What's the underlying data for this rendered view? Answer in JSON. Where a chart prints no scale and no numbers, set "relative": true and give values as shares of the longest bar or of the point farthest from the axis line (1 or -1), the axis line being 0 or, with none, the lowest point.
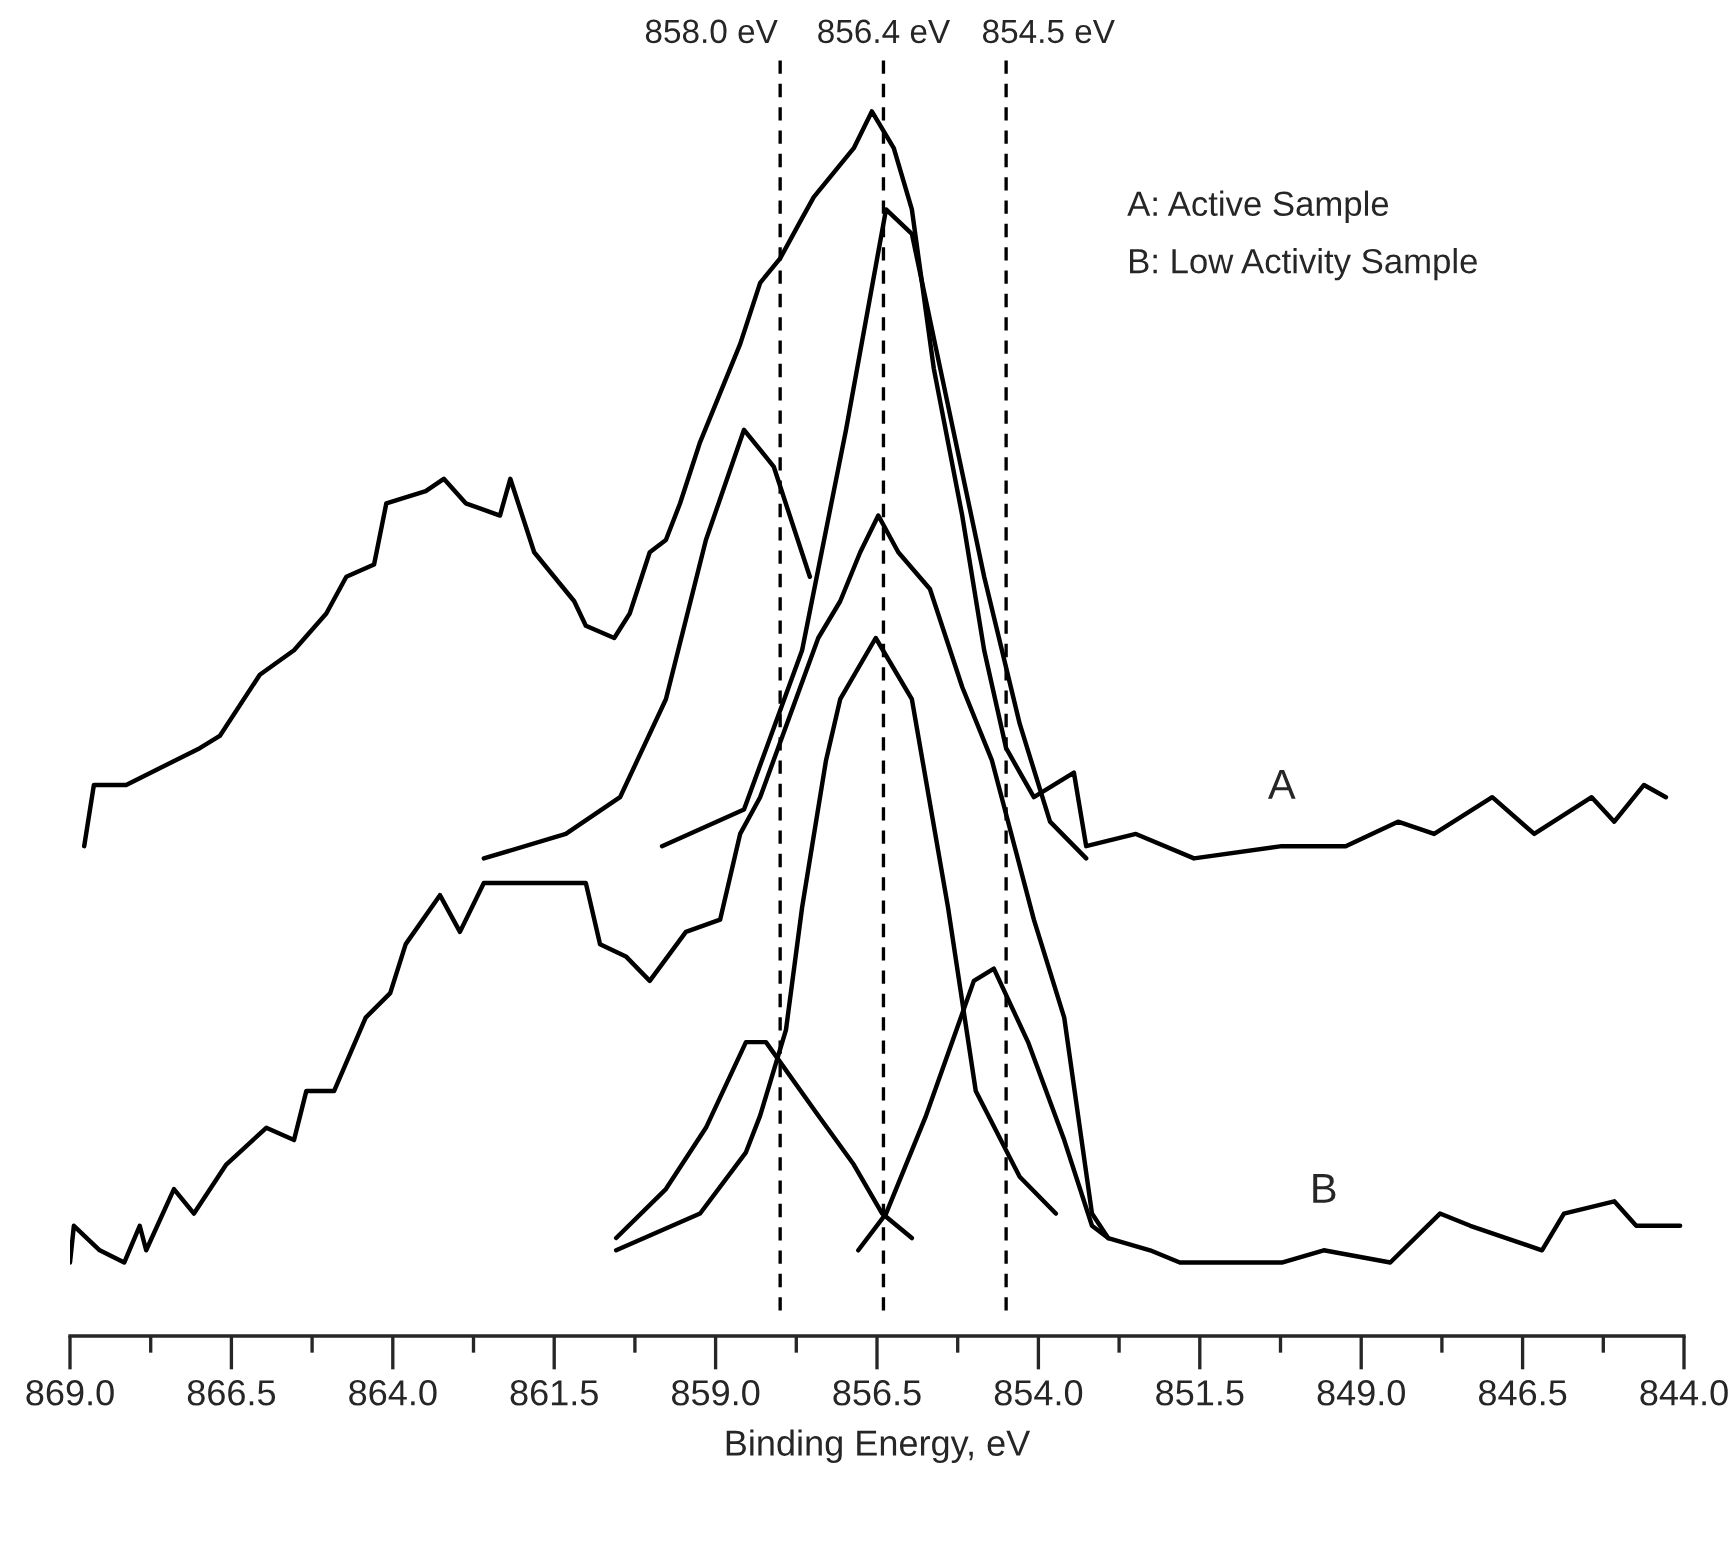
{
  "chart_data": {
    "type": "line",
    "relative": true,
    "xlabel": "Binding Energy, eV",
    "xlim": [
      869.0,
      844.0
    ],
    "xticks": [
      {
        "value": 869.0,
        "label": "869.0"
      },
      {
        "value": 867.75,
        "label": null
      },
      {
        "value": 866.5,
        "label": "866.5"
      },
      {
        "value": 865.25,
        "label": null
      },
      {
        "value": 864.0,
        "label": "864.0"
      },
      {
        "value": 862.75,
        "label": null
      },
      {
        "value": 861.5,
        "label": "861.5"
      },
      {
        "value": 860.25,
        "label": null
      },
      {
        "value": 859.0,
        "label": "859.0"
      },
      {
        "value": 857.75,
        "label": null
      },
      {
        "value": 856.5,
        "label": "856.5"
      },
      {
        "value": 855.25,
        "label": null
      },
      {
        "value": 854.0,
        "label": "854.0"
      },
      {
        "value": 852.75,
        "label": null
      },
      {
        "value": 851.5,
        "label": "851.5"
      },
      {
        "value": 850.25,
        "label": null
      },
      {
        "value": 849.0,
        "label": "849.0"
      },
      {
        "value": 847.75,
        "label": null
      },
      {
        "value": 846.5,
        "label": "846.5"
      },
      {
        "value": 845.25,
        "label": null
      },
      {
        "value": 844.0,
        "label": "844.0"
      }
    ],
    "tick_labels": "x",
    "grid": false,
    "legend": false,
    "line_style": "solid",
    "marker": "none",
    "series": [
      {
        "name": "A",
        "color": "#000000",
        "x": [
          868.78,
          868.63,
          868.13,
          866.99,
          866.68,
          866.06,
          865.53,
          865.03,
          864.72,
          864.29,
          864.1,
          863.49,
          863.21,
          862.87,
          862.34,
          862.18,
          861.81,
          861.5,
          861.19,
          861.01,
          860.57,
          860.33,
          860.02,
          859.77,
          859.55,
          859.24,
          858.93,
          858.62,
          858.31,
          858.0,
          857.69,
          857.48,
          857.17,
          856.86,
          856.58,
          856.24,
          855.96,
          855.62,
          855.18,
          854.84,
          854.5,
          854.07,
          853.45,
          853.26,
          852.49,
          851.59,
          850.23,
          849.24,
          848.43,
          847.87,
          846.97,
          846.32,
          845.43,
          845.08,
          844.62,
          844.28
        ],
        "values": [
          0.4,
          0.45,
          0.45,
          0.48,
          0.49,
          0.54,
          0.56,
          0.59,
          0.62,
          0.63,
          0.68,
          0.69,
          0.7,
          0.68,
          0.67,
          0.7,
          0.64,
          0.62,
          0.6,
          0.58,
          0.57,
          0.59,
          0.64,
          0.65,
          0.68,
          0.73,
          0.77,
          0.81,
          0.86,
          0.88,
          0.91,
          0.93,
          0.95,
          0.97,
          1.0,
          0.97,
          0.92,
          0.79,
          0.67,
          0.56,
          0.48,
          0.44,
          0.46,
          0.4,
          0.41,
          0.39,
          0.4,
          0.4,
          0.42,
          0.41,
          0.44,
          0.41,
          0.44,
          0.42,
          0.45,
          0.44
        ]
      },
      {
        "color": "#000000",
        "x": [
          862.59,
          861.32,
          860.48,
          859.77,
          859.15,
          858.56,
          858.1,
          857.54
        ],
        "values": [
          0.39,
          0.41,
          0.44,
          0.52,
          0.65,
          0.74,
          0.71,
          0.62
        ]
      },
      {
        "color": "#000000",
        "x": [
          859.83,
          858.56,
          857.66,
          856.98,
          856.36,
          855.96,
          855.52,
          854.84,
          854.29,
          853.82,
          853.26
        ],
        "values": [
          0.4,
          0.43,
          0.56,
          0.74,
          0.92,
          0.9,
          0.79,
          0.62,
          0.5,
          0.42,
          0.39
        ]
      },
      {
        "name": "B",
        "color": "#000000",
        "x": [
          869.0,
          868.94,
          868.54,
          868.16,
          867.92,
          867.82,
          867.39,
          867.08,
          866.58,
          865.96,
          865.53,
          865.34,
          864.91,
          864.42,
          864.04,
          863.8,
          863.27,
          862.96,
          862.59,
          861.81,
          861.32,
          861.01,
          860.79,
          860.39,
          860.02,
          859.46,
          858.93,
          858.62,
          858.31,
          857.41,
          857.07,
          856.76,
          856.48,
          856.17,
          855.68,
          855.18,
          854.72,
          854.07,
          853.6,
          853.17,
          852.92,
          852.27,
          851.81,
          850.23,
          849.58,
          848.55,
          847.78,
          847.31,
          846.2,
          845.86,
          845.08,
          844.74,
          844.06
        ],
        "values": [
          0.06,
          0.09,
          0.07,
          0.06,
          0.09,
          0.07,
          0.12,
          0.1,
          0.14,
          0.17,
          0.16,
          0.2,
          0.2,
          0.26,
          0.28,
          0.32,
          0.36,
          0.33,
          0.37,
          0.37,
          0.37,
          0.37,
          0.32,
          0.31,
          0.29,
          0.33,
          0.34,
          0.41,
          0.44,
          0.57,
          0.6,
          0.64,
          0.67,
          0.64,
          0.61,
          0.53,
          0.47,
          0.34,
          0.26,
          0.1,
          0.08,
          0.07,
          0.06,
          0.06,
          0.07,
          0.06,
          0.1,
          0.09,
          0.07,
          0.1,
          0.11,
          0.09,
          0.09
        ]
      },
      {
        "color": "#000000",
        "x": [
          860.54,
          859.77,
          859.15,
          858.53,
          858.22,
          857.41,
          856.86,
          856.42,
          855.96
        ],
        "values": [
          0.08,
          0.12,
          0.17,
          0.24,
          0.24,
          0.18,
          0.14,
          0.1,
          0.08
        ]
      },
      {
        "color": "#000000",
        "x": [
          860.54,
          859.24,
          858.53,
          858.31,
          857.91,
          857.66,
          857.29,
          857.07,
          856.52,
          855.96,
          855.4,
          854.97,
          854.29,
          853.73
        ],
        "values": [
          0.07,
          0.1,
          0.15,
          0.18,
          0.25,
          0.35,
          0.47,
          0.52,
          0.57,
          0.52,
          0.35,
          0.2,
          0.13,
          0.1
        ]
      },
      {
        "color": "#000000",
        "x": [
          856.79,
          856.36,
          855.74,
          855.0,
          854.69,
          854.16,
          853.6,
          853.17,
          852.92
        ],
        "values": [
          0.07,
          0.1,
          0.18,
          0.29,
          0.3,
          0.24,
          0.16,
          0.09,
          0.08
        ]
      }
    ],
    "ref_lines": [
      {
        "axis": "x",
        "value": 858.0,
        "label": "858.0 eV",
        "color": "#000000",
        "line_style": "dashed"
      },
      {
        "axis": "x",
        "value": 856.4,
        "label": "856.4 eV",
        "color": "#000000",
        "line_style": "dashed"
      },
      {
        "axis": "x",
        "value": 854.5,
        "label": "854.5 eV",
        "color": "#000000",
        "line_style": "dashed"
      }
    ],
    "annotations": [
      "A: Active Sample",
      "B: Low Activity Sample"
    ]
  }
}
